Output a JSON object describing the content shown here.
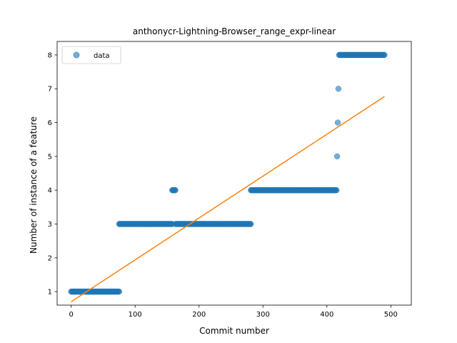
{
  "chart_data": {
    "type": "scatter",
    "title": "anthonycr-Lightning-Browser_range_expr-linear",
    "xlabel": "Commit number",
    "ylabel": "Number of instance of a feature",
    "xlim": [
      -22,
      532
    ],
    "ylim": [
      0.6,
      8.4
    ],
    "xticks": [
      0,
      100,
      200,
      300,
      400,
      500
    ],
    "yticks": [
      1,
      2,
      3,
      4,
      5,
      6,
      7,
      8
    ],
    "grid": false,
    "legend": {
      "placement": "top-left",
      "entries": [
        "data"
      ]
    },
    "colors": {
      "points": "#1f77b4",
      "fit": "#ff7f0e"
    },
    "series": [
      {
        "name": "data",
        "kind": "scatter",
        "runs": [
          {
            "x_start": 0,
            "x_end": 75,
            "y": 1
          },
          {
            "x_start": 75,
            "x_end": 158,
            "y": 3
          },
          {
            "x_start": 158,
            "x_end": 163,
            "y": 4
          },
          {
            "x_start": 163,
            "x_end": 281,
            "y": 3
          },
          {
            "x_start": 281,
            "x_end": 415,
            "y": 4
          },
          {
            "x_start": 416,
            "x_end": 416,
            "y": 5
          },
          {
            "x_start": 417,
            "x_end": 417,
            "y": 6
          },
          {
            "x_start": 418,
            "x_end": 418,
            "y": 7
          },
          {
            "x_start": 419,
            "x_end": 490,
            "y": 8
          }
        ]
      },
      {
        "name": "",
        "kind": "line",
        "x": [
          0,
          490
        ],
        "y": [
          0.7,
          6.77
        ]
      }
    ]
  }
}
